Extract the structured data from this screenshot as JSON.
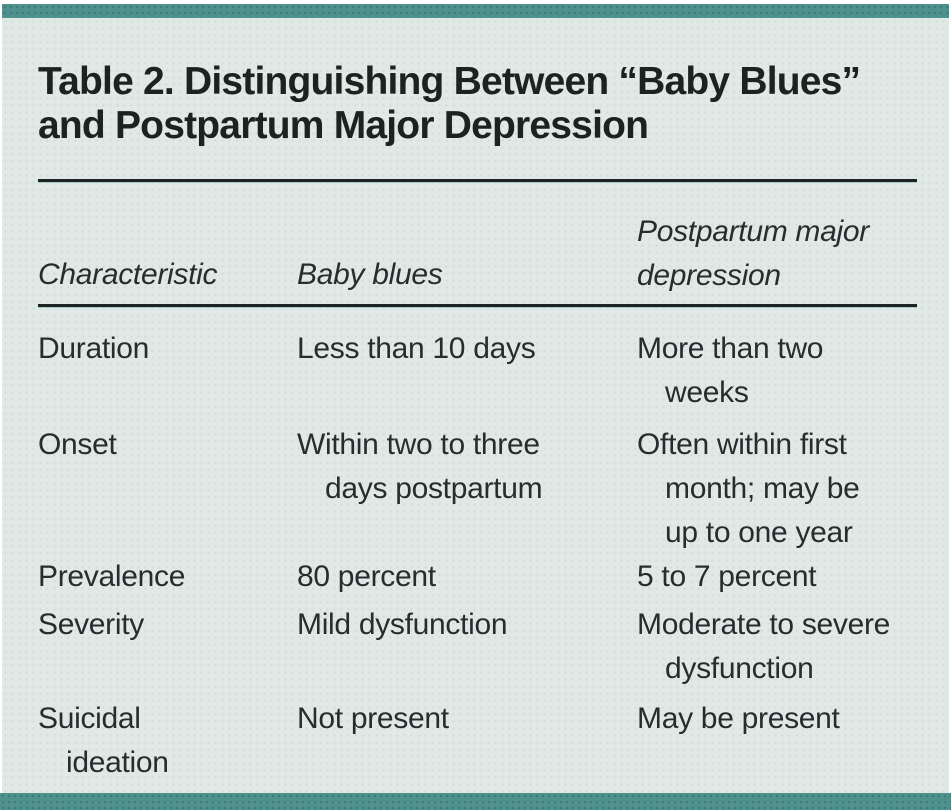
{
  "page": {
    "accent_color": "#4e918d",
    "background_color": "#e0e9e5",
    "rule_color": "#1d2223"
  },
  "table": {
    "title": "Table 2. Distinguishing Between “Baby Blues”\nand Postpartum Major Depression",
    "columns": [
      "Characteristic",
      "Baby blues",
      "Postpartum major\ndepression"
    ],
    "rows": [
      {
        "characteristic": "Duration",
        "baby_blues": "Less than 10 days",
        "postpartum_major_depression": "More than two\nweeks"
      },
      {
        "characteristic": "Onset",
        "baby_blues": "Within two to three\ndays postpartum",
        "postpartum_major_depression": "Often within first\nmonth; may be\nup to one year"
      },
      {
        "characteristic": "Prevalence",
        "baby_blues": "80 percent",
        "postpartum_major_depression": "5 to 7 percent"
      },
      {
        "characteristic": "Severity",
        "baby_blues": "Mild dysfunction",
        "postpartum_major_depression": "Moderate to severe\ndysfunction"
      },
      {
        "characteristic": "Suicidal\nideation",
        "baby_blues": "Not present",
        "postpartum_major_depression": "May be present"
      }
    ]
  }
}
